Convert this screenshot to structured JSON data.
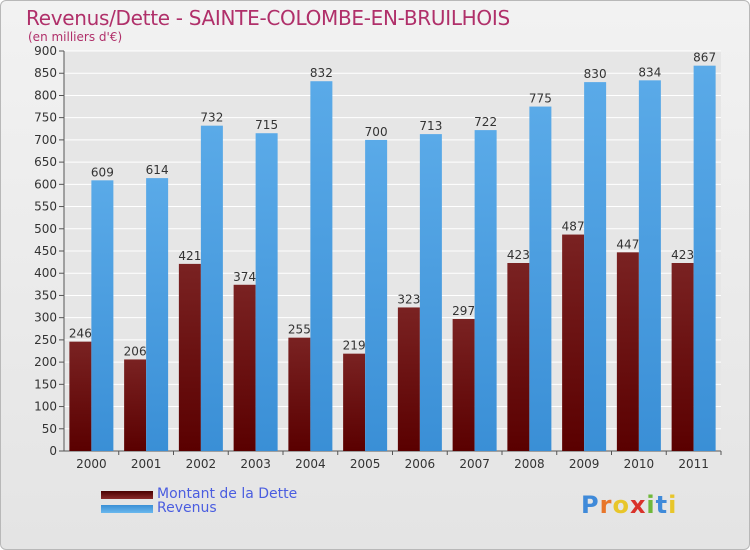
{
  "title": "Revenus/Dette - SAINTE-COLOMBE-EN-BRUILHOIS",
  "subtitle": "(en milliers d'€)",
  "chart_data": {
    "type": "bar",
    "title": "Revenus/Dette - SAINTE-COLOMBE-EN-BRUILHOIS",
    "subtitle": "(en milliers d'€)",
    "categories": [
      "2000",
      "2001",
      "2002",
      "2003",
      "2004",
      "2005",
      "2006",
      "2007",
      "2008",
      "2009",
      "2010",
      "2011"
    ],
    "series": [
      {
        "name": "Montant de la Dette",
        "color": "#7a1c1c",
        "values": [
          246,
          206,
          421,
          374,
          255,
          219,
          323,
          297,
          423,
          487,
          447,
          423
        ]
      },
      {
        "name": "Revenus",
        "color": "#4a9fe0",
        "values": [
          609,
          614,
          732,
          715,
          832,
          700,
          713,
          722,
          775,
          830,
          834,
          867
        ]
      }
    ],
    "ylim": [
      0,
      900
    ],
    "yticks": [
      0,
      50,
      100,
      150,
      200,
      250,
      300,
      350,
      400,
      450,
      500,
      550,
      600,
      650,
      700,
      750,
      800,
      850,
      900
    ],
    "grid": true,
    "legend": "bottom-left"
  },
  "legend": {
    "items": [
      {
        "label": "Montant de la Dette",
        "color": "#7a1c1c"
      },
      {
        "label": "Revenus",
        "color": "#4a9fe0"
      }
    ]
  },
  "logo": {
    "letters": [
      "P",
      "r",
      "o",
      "x",
      "i",
      "t",
      "i"
    ],
    "colors": [
      "#3f8ad9",
      "#e8762a",
      "#e8c62a",
      "#d9322a",
      "#6fb83a",
      "#3f8ad9",
      "#e8c62a"
    ]
  }
}
